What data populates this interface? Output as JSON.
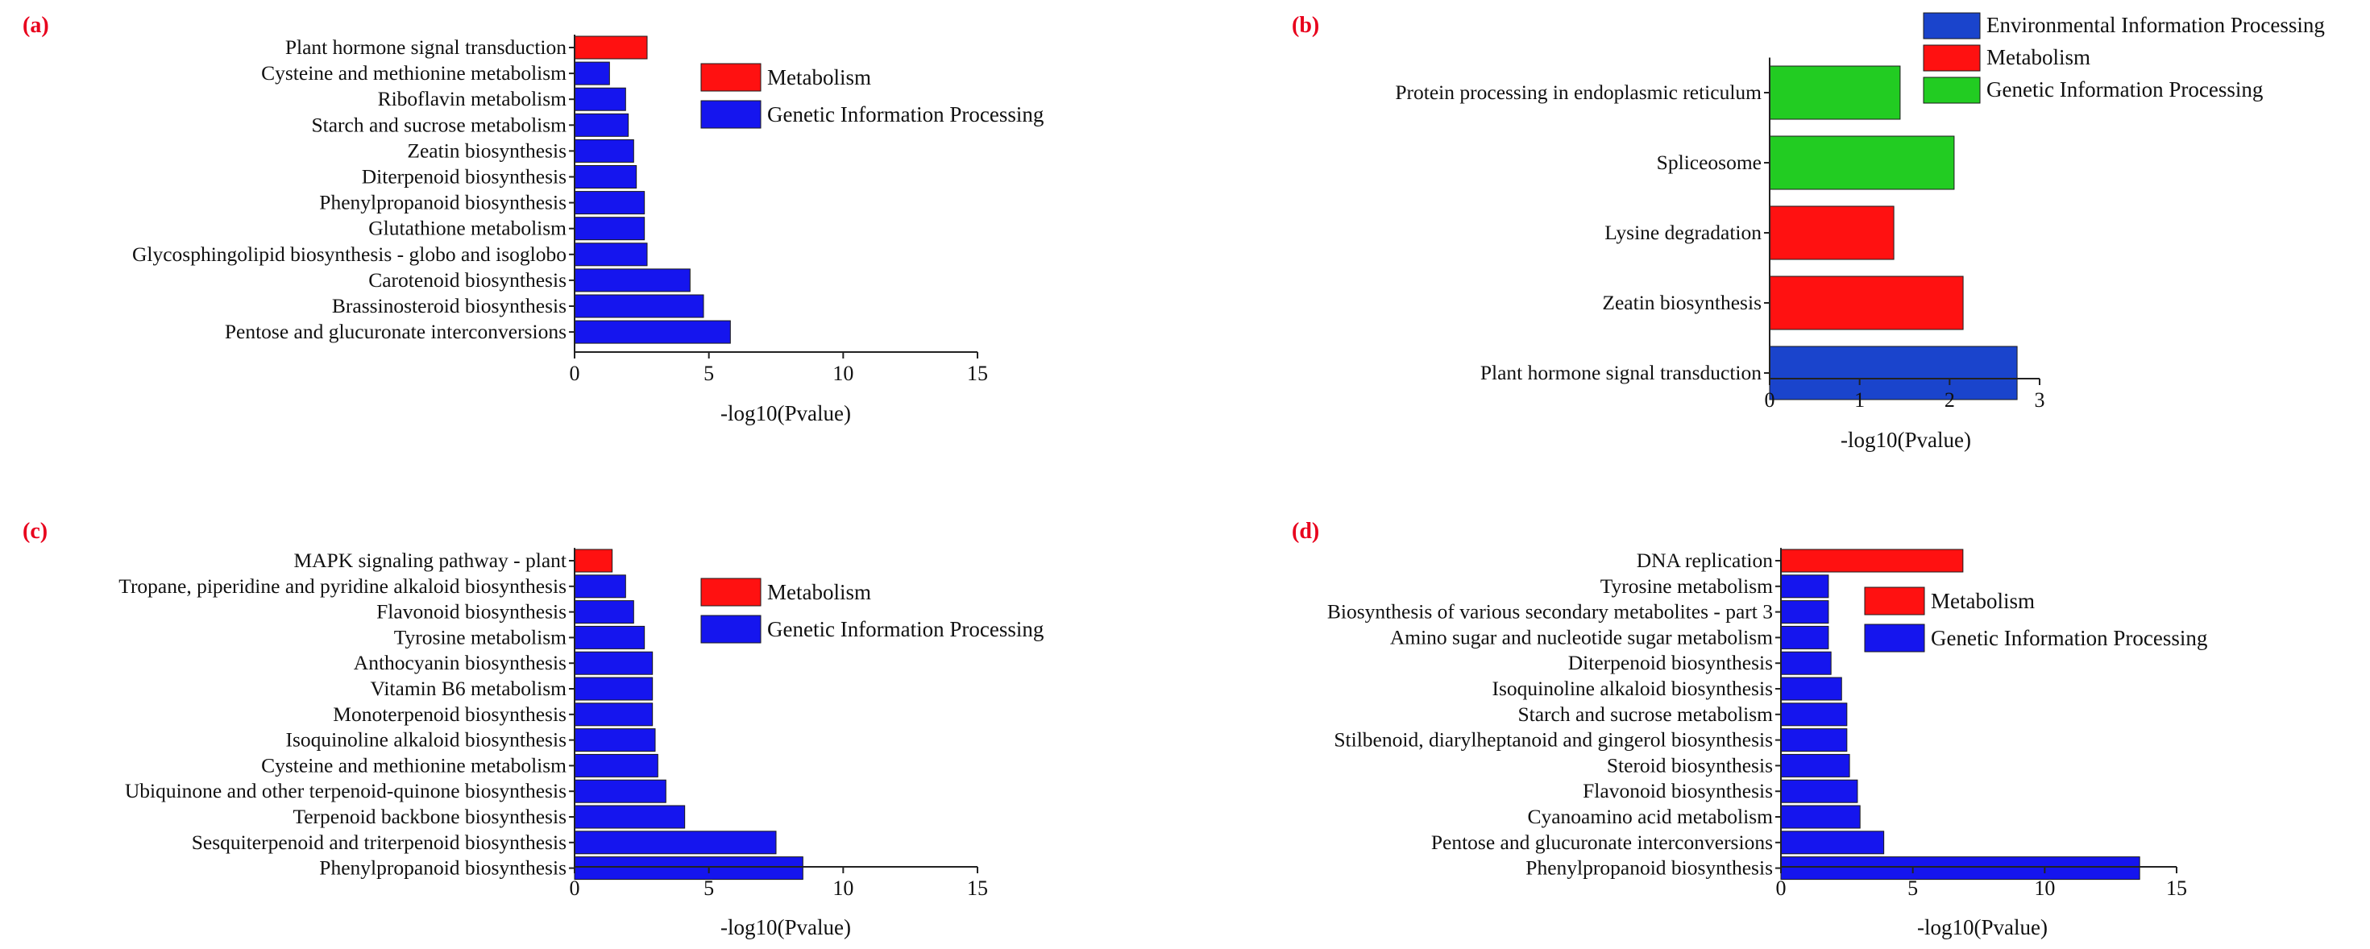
{
  "colors": {
    "Metabolism": "#ff1111",
    "Genetic Information Processing": "#1515ee",
    "Environmental Information Processing": "#1a44cc",
    "Genetic Information Processing (b)": "#22cc22"
  },
  "chart_data": [
    {
      "panel": "(a)",
      "type": "bar",
      "orientation": "horizontal",
      "xlabel": "-log10(Pvalue)",
      "xlim": [
        0,
        15
      ],
      "xticks": [
        0,
        5,
        10,
        15
      ],
      "legend": [
        {
          "label": "Metabolism",
          "color": "#ff1111"
        },
        {
          "label": "Genetic Information Processing",
          "color": "#1515ee"
        }
      ],
      "categories": [
        "Plant hormone signal transduction",
        "Cysteine and methionine metabolism",
        "Riboflavin metabolism",
        "Starch and sucrose metabolism",
        "Zeatin biosynthesis",
        "Diterpenoid biosynthesis",
        "Phenylpropanoid biosynthesis",
        "Glutathione metabolism",
        "Glycosphingolipid biosynthesis - globo and isoglobo",
        "Carotenoid biosynthesis",
        "Brassinosteroid biosynthesis",
        "Pentose and glucuronate interconversions"
      ],
      "values": [
        2.7,
        1.3,
        1.9,
        2.0,
        2.2,
        2.3,
        2.6,
        2.6,
        2.7,
        4.3,
        4.8,
        5.8
      ],
      "colors": [
        "#ff1111",
        "#1515ee",
        "#1515ee",
        "#1515ee",
        "#1515ee",
        "#1515ee",
        "#1515ee",
        "#1515ee",
        "#1515ee",
        "#1515ee",
        "#1515ee",
        "#1515ee"
      ]
    },
    {
      "panel": "(b)",
      "type": "bar",
      "orientation": "horizontal",
      "xlabel": "-log10(Pvalue)",
      "xlim": [
        0,
        3
      ],
      "xticks": [
        0,
        1,
        2,
        3
      ],
      "legend": [
        {
          "label": "Environmental Information Processing",
          "color": "#1a44cc"
        },
        {
          "label": "Metabolism",
          "color": "#ff1111"
        },
        {
          "label": "Genetic Information Processing",
          "color": "#22cc22"
        }
      ],
      "categories": [
        "Protein processing in endoplasmic reticulum",
        "Spliceosome",
        "Lysine degradation",
        "Zeatin biosynthesis",
        "Plant hormone signal transduction"
      ],
      "values": [
        1.45,
        2.05,
        1.38,
        2.15,
        2.75
      ],
      "colors": [
        "#22cc22",
        "#22cc22",
        "#ff1111",
        "#ff1111",
        "#1a44cc"
      ]
    },
    {
      "panel": "(c)",
      "type": "bar",
      "orientation": "horizontal",
      "xlabel": "-log10(Pvalue)",
      "xlim": [
        0,
        15
      ],
      "xticks": [
        0,
        5,
        10,
        15
      ],
      "legend": [
        {
          "label": "Metabolism",
          "color": "#ff1111"
        },
        {
          "label": "Genetic Information Processing",
          "color": "#1515ee"
        }
      ],
      "categories": [
        "MAPK signaling pathway - plant",
        "Tropane, piperidine and pyridine alkaloid biosynthesis",
        "Flavonoid biosynthesis",
        "Tyrosine metabolism",
        "Anthocyanin biosynthesis",
        "Vitamin B6 metabolism",
        "Monoterpenoid biosynthesis",
        "Isoquinoline alkaloid biosynthesis",
        "Cysteine and methionine metabolism",
        "Ubiquinone and other terpenoid-quinone biosynthesis",
        "Terpenoid backbone biosynthesis",
        "Sesquiterpenoid and triterpenoid biosynthesis",
        "Phenylpropanoid biosynthesis"
      ],
      "values": [
        1.4,
        1.9,
        2.2,
        2.6,
        2.9,
        2.9,
        2.9,
        3.0,
        3.1,
        3.4,
        4.1,
        7.5,
        8.5
      ],
      "colors": [
        "#ff1111",
        "#1515ee",
        "#1515ee",
        "#1515ee",
        "#1515ee",
        "#1515ee",
        "#1515ee",
        "#1515ee",
        "#1515ee",
        "#1515ee",
        "#1515ee",
        "#1515ee",
        "#1515ee"
      ]
    },
    {
      "panel": "(d)",
      "type": "bar",
      "orientation": "horizontal",
      "xlabel": "-log10(Pvalue)",
      "xlim": [
        0,
        15
      ],
      "xticks": [
        0,
        5,
        10,
        15
      ],
      "legend": [
        {
          "label": "Metabolism",
          "color": "#ff1111"
        },
        {
          "label": "Genetic Information Processing",
          "color": "#1515ee"
        }
      ],
      "categories": [
        "DNA replication",
        "Tyrosine metabolism",
        "Biosynthesis of various secondary metabolites - part 3",
        "Amino sugar and nucleotide sugar metabolism",
        "Diterpenoid biosynthesis",
        "Isoquinoline alkaloid biosynthesis",
        "Starch and sucrose metabolism",
        "Stilbenoid, diarylheptanoid and gingerol biosynthesis",
        "Steroid biosynthesis",
        "Flavonoid biosynthesis",
        "Cyanoamino acid metabolism",
        "Pentose and glucuronate interconversions",
        "Phenylpropanoid biosynthesis"
      ],
      "values": [
        6.9,
        1.8,
        1.8,
        1.8,
        1.9,
        2.3,
        2.5,
        2.5,
        2.6,
        2.9,
        3.0,
        3.9,
        13.6
      ],
      "colors": [
        "#ff1111",
        "#1515ee",
        "#1515ee",
        "#1515ee",
        "#1515ee",
        "#1515ee",
        "#1515ee",
        "#1515ee",
        "#1515ee",
        "#1515ee",
        "#1515ee",
        "#1515ee",
        "#1515ee"
      ]
    }
  ]
}
